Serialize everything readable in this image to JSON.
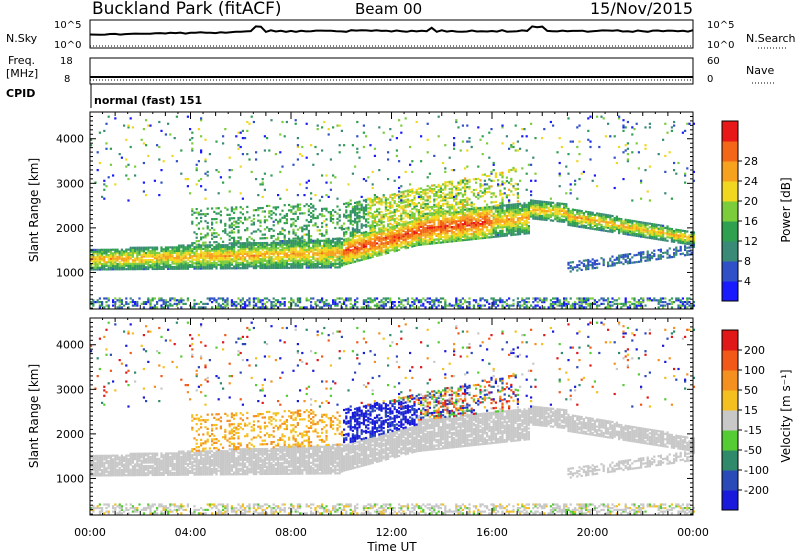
{
  "header": {
    "station": "Buckland Park (fitACF)",
    "beam": "Beam 00",
    "date": "15/Nov/2015"
  },
  "status_panels": {
    "nsky_label": "N.Sky",
    "nsearch_label": "N.Search",
    "nsky_ticks": [
      "10^5",
      "10^0"
    ],
    "nsearch_ticks": [
      "10^5",
      "10^0"
    ],
    "freq_label_line1": "Freq.",
    "freq_label_line2": "[MHz]",
    "freq_ticks": [
      "18",
      "8"
    ],
    "nave_label": "Nave",
    "nave_ticks": [
      "60",
      "0"
    ],
    "cpid_label": "CPID",
    "cpid_text": "normal (fast) 151"
  },
  "colors": {
    "power_scale": [
      "#1a1aff",
      "#3050c8",
      "#3a8a78",
      "#2fa050",
      "#7ccd3c",
      "#f0d820",
      "#f7a21e",
      "#f26818",
      "#e81818"
    ],
    "velocity_scale": [
      "#1a1adc",
      "#2a4ab8",
      "#2e8a6a",
      "#55cc33",
      "#c8c8c8",
      "#f4c020",
      "#f49020",
      "#f25818",
      "#e01818"
    ],
    "ground_scatter": "#c8c8c8"
  },
  "chart_data": [
    {
      "type": "heatmap",
      "title": "",
      "xlabel": "",
      "ylabel": "Slant Range [km]",
      "x_ticks": [
        "00:00",
        "04:00",
        "08:00",
        "12:00",
        "16:00",
        "20:00",
        "00:00"
      ],
      "y_ticks": [
        "1000",
        "2000",
        "3000",
        "4000"
      ],
      "x_range_hours": [
        0,
        24
      ],
      "ylim": [
        180,
        4600
      ],
      "colorbar": {
        "label": "Power [dB]",
        "ticks": [
          "4",
          "8",
          "12",
          "16",
          "20",
          "24",
          "28"
        ],
        "range": [
          0,
          32
        ]
      }
    },
    {
      "type": "heatmap",
      "title": "",
      "xlabel": "Time UT",
      "ylabel": "Slant Range [km]",
      "x_ticks": [
        "00:00",
        "04:00",
        "08:00",
        "12:00",
        "16:00",
        "20:00",
        "00:00"
      ],
      "y_ticks": [
        "1000",
        "2000",
        "3000",
        "4000"
      ],
      "x_range_hours": [
        0,
        24
      ],
      "ylim": [
        180,
        4600
      ],
      "colorbar": {
        "label": "Velocity [m s⁻¹]",
        "ticks": [
          "200",
          "100",
          "50",
          "15",
          "-15",
          "-50",
          "-100",
          "-200"
        ],
        "range": [
          -250,
          250
        ]
      }
    }
  ]
}
